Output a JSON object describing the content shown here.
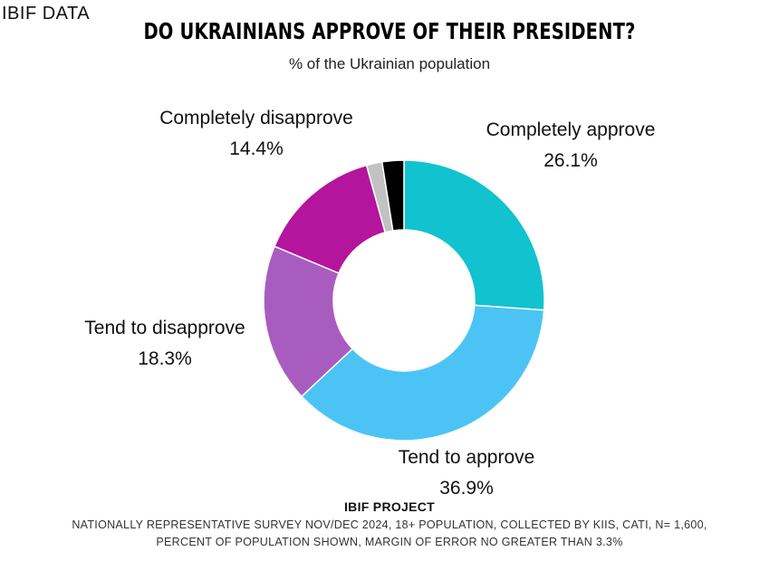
{
  "brand": "IBIF DATA",
  "footer": {
    "project": "IBIF PROJECT",
    "note_line1": "NATIONALLY REPRESENTATIVE SURVEY NOV/DEC 2024, 18+ POPULATION, COLLECTED BY KIIS, CATI, N= 1,600,",
    "note_line2": "PERCENT OF POPULATION SHOWN, MARGIN OF ERROR NO GREATER THAN 3.3%"
  },
  "chart_data": {
    "type": "pie",
    "title": "DO UKRAINIANS APPROVE OF THEIR PRESIDENT?",
    "subtitle": "% of the Ukrainian population",
    "donut": true,
    "slices": [
      {
        "label": "Completely approve",
        "value": 26.1,
        "display": "26.1%",
        "color": "#10c3cf"
      },
      {
        "label": "Tend to approve",
        "value": 36.9,
        "display": "36.9%",
        "color": "#4bc4f5"
      },
      {
        "label": "Tend to disapprove",
        "value": 18.3,
        "display": "18.3%",
        "color": "#a95cc0"
      },
      {
        "label": "Completely disapprove",
        "value": 14.4,
        "display": "14.4%",
        "color": "#b5149c"
      },
      {
        "label": "",
        "value": 1.8,
        "display": "",
        "color": "#c2c2c2"
      },
      {
        "label": "",
        "value": 2.5,
        "display": "",
        "color": "#000000"
      }
    ]
  }
}
